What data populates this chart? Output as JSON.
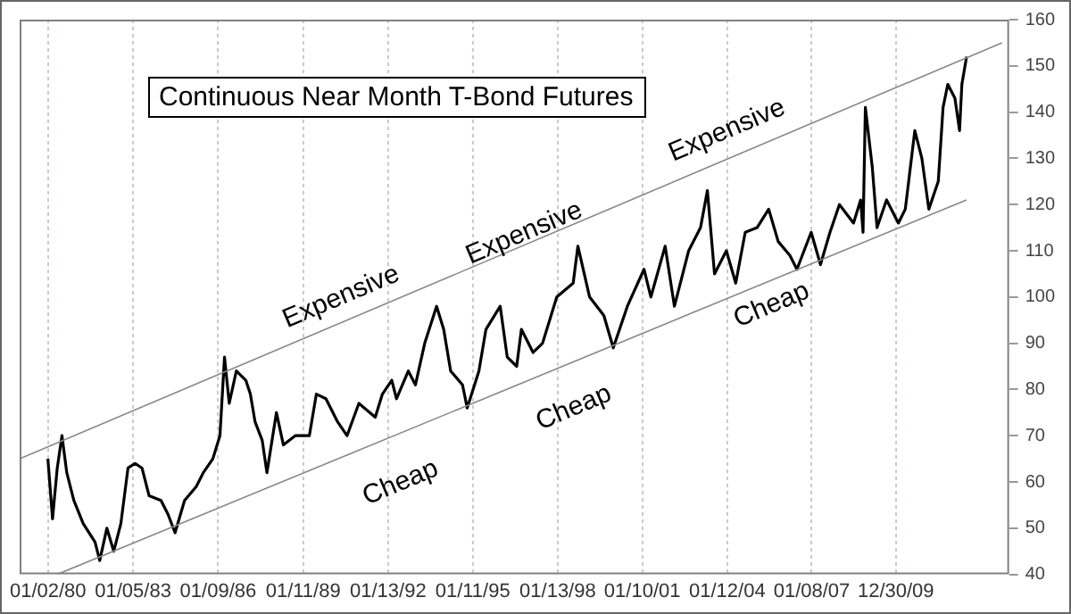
{
  "chart_data": {
    "type": "line",
    "title": "Continuous Near Month T-Bond Futures",
    "xlim": [
      "1979-01",
      "2014-01"
    ],
    "ylim": [
      40,
      160
    ],
    "xticks": [
      {
        "value": "1980-01-02",
        "label": "01/02/80"
      },
      {
        "value": "1983-01-05",
        "label": "01/05/83"
      },
      {
        "value": "1986-01-09",
        "label": "01/09/86"
      },
      {
        "value": "1989-01-11",
        "label": "01/11/89"
      },
      {
        "value": "1992-01-13",
        "label": "01/13/92"
      },
      {
        "value": "1995-01-11",
        "label": "01/11/95"
      },
      {
        "value": "1998-01-13",
        "label": "01/13/98"
      },
      {
        "value": "2001-01-10",
        "label": "01/10/01"
      },
      {
        "value": "2004-01-12",
        "label": "01/12/04"
      },
      {
        "value": "2007-01-08",
        "label": "01/08/07"
      },
      {
        "value": "2009-12-30",
        "label": "12/30/09"
      }
    ],
    "yticks": [
      40,
      50,
      60,
      70,
      80,
      90,
      100,
      110,
      120,
      130,
      140,
      150,
      160
    ],
    "grid": "x",
    "legend": false,
    "marker": "none",
    "line_style": "solid",
    "series": [
      {
        "color": "#000000",
        "x": [
          "1980-01",
          "1980-03",
          "1980-05",
          "1980-07",
          "1980-09",
          "1980-12",
          "1981-04",
          "1981-09",
          "1981-11",
          "1982-02",
          "1982-05",
          "1982-08",
          "1982-11",
          "1983-02",
          "1983-05",
          "1983-08",
          "1984-01",
          "1984-04",
          "1984-07",
          "1984-11",
          "1985-04",
          "1985-07",
          "1985-11",
          "1986-02",
          "1986-04",
          "1986-06",
          "1986-09",
          "1987-01",
          "1987-03",
          "1987-05",
          "1987-08",
          "1987-10",
          "1988-02",
          "1988-05",
          "1988-10",
          "1989-04",
          "1989-07",
          "1989-11",
          "1990-04",
          "1990-08",
          "1991-01",
          "1991-08",
          "1991-11",
          "1992-03",
          "1992-05",
          "1992-10",
          "1993-01",
          "1993-05",
          "1993-10",
          "1994-01",
          "1994-04",
          "1994-09",
          "1994-11",
          "1995-04",
          "1995-07",
          "1996-01",
          "1996-04",
          "1996-08",
          "1996-10",
          "1997-03",
          "1997-07",
          "1998-01",
          "1998-08",
          "1998-10",
          "1999-03",
          "1999-09",
          "2000-01",
          "2000-07",
          "2001-02",
          "2001-05",
          "2001-11",
          "2002-03",
          "2002-09",
          "2003-02",
          "2003-05",
          "2003-08",
          "2004-01",
          "2004-05",
          "2004-09",
          "2005-02",
          "2005-07",
          "2005-11",
          "2006-04",
          "2006-07",
          "2007-01",
          "2007-05",
          "2007-09",
          "2008-01",
          "2008-07",
          "2008-10",
          "2008-11",
          "2008-12",
          "2009-03",
          "2009-05",
          "2009-09",
          "2010-02",
          "2010-05",
          "2010-09",
          "2010-12",
          "2011-03",
          "2011-07",
          "2011-09",
          "2011-11",
          "2012-02",
          "2012-04",
          "2012-05",
          "2012-07"
        ],
        "values": [
          65,
          52,
          63,
          70,
          62,
          56,
          51,
          47,
          43,
          50,
          45,
          51,
          63,
          64,
          63,
          57,
          56,
          53,
          49,
          56,
          59,
          62,
          65,
          70,
          87,
          77,
          84,
          82,
          79,
          73,
          69,
          62,
          75,
          68,
          70,
          70,
          79,
          78,
          73,
          70,
          77,
          74,
          79,
          82,
          78,
          84,
          81,
          90,
          98,
          93,
          84,
          81,
          76,
          84,
          93,
          98,
          87,
          85,
          93,
          88,
          90,
          100,
          103,
          111,
          100,
          96,
          89,
          98,
          106,
          100,
          111,
          98,
          110,
          115,
          123,
          105,
          110,
          103,
          114,
          115,
          119,
          112,
          109,
          106,
          114,
          107,
          114,
          120,
          116,
          121,
          114,
          141,
          128,
          115,
          121,
          116,
          119,
          136,
          130,
          119,
          125,
          141,
          146,
          143,
          136,
          146,
          152
        ]
      },
      {
        "color": "#888888",
        "x": [
          "1979-01",
          "2013-10"
        ],
        "values": [
          65,
          155
        ]
      },
      {
        "color": "#888888",
        "x": [
          "1980-05",
          "2012-07"
        ],
        "values": [
          40,
          121
        ]
      }
    ],
    "annotations": [
      "Expensive",
      "Expensive",
      "Expensive",
      "Cheap",
      "Cheap",
      "Cheap"
    ]
  }
}
